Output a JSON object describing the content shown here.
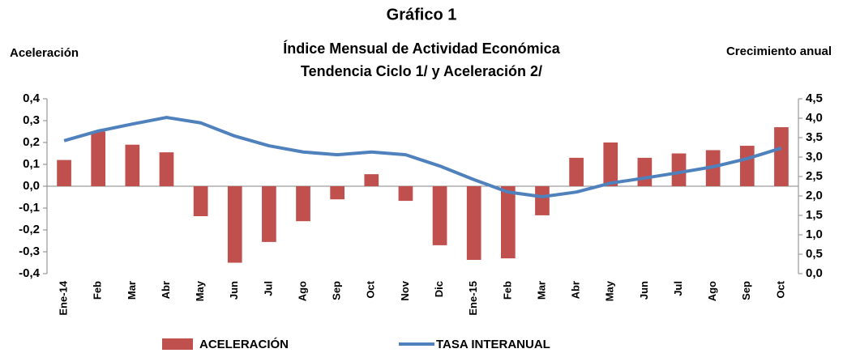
{
  "chart_data": {
    "type": "bar",
    "title": "Gráfico 1",
    "subtitle": [
      "Índice Mensual de Actividad Económica",
      "Tendencia Ciclo 1/ y Aceleración 2/"
    ],
    "y_label": "Aceleración",
    "y2_label": "Crecimiento anual",
    "categories": [
      "Ene-14",
      "Feb",
      "Mar",
      "Abr",
      "May",
      "Jun",
      "Jul",
      "Ago",
      "Sep",
      "Oct",
      "Nov",
      "Dic",
      "Ene-15",
      "Feb",
      "Mar",
      "Abr",
      "May",
      "Jun",
      "Jul",
      "Ago",
      "Sep",
      "Oct"
    ],
    "series": [
      {
        "name": "ACELERACIÓN",
        "type": "bar",
        "color": "#c0504d",
        "values": [
          0.12,
          0.25,
          0.19,
          0.155,
          -0.137,
          -0.35,
          -0.255,
          -0.16,
          -0.06,
          0.055,
          -0.067,
          -0.27,
          -0.337,
          -0.33,
          -0.133,
          0.13,
          0.2,
          0.13,
          0.15,
          0.165,
          0.185,
          0.27
        ]
      },
      {
        "name": "TASA INTERANUAL",
        "type": "line",
        "axis": "y2",
        "color": "#4f81bd",
        "values": [
          3.42,
          3.67,
          3.85,
          4.02,
          3.88,
          3.54,
          3.29,
          3.13,
          3.06,
          3.13,
          3.06,
          2.77,
          2.42,
          2.1,
          1.98,
          2.1,
          2.33,
          2.46,
          2.6,
          2.75,
          2.96,
          3.23
        ]
      }
    ],
    "ylim": [
      -0.4,
      0.4
    ],
    "yticks": [
      {
        "value": 0.4,
        "label": "0,4"
      },
      {
        "value": 0.3,
        "label": "0,3"
      },
      {
        "value": 0.2,
        "label": "0,2"
      },
      {
        "value": 0.1,
        "label": "0,1"
      },
      {
        "value": 0,
        "label": "0,0"
      },
      {
        "value": -0.1,
        "label": "-0,1"
      },
      {
        "value": -0.2,
        "label": "-0,2"
      },
      {
        "value": -0.3,
        "label": "-0,3"
      },
      {
        "value": -0.4,
        "label": "-0,4"
      }
    ],
    "y2lim": [
      0,
      4.5
    ],
    "y2ticks": [
      {
        "value": 4.5,
        "label": "4,5"
      },
      {
        "value": 4,
        "label": "4,0"
      },
      {
        "value": 3.5,
        "label": "3,5"
      },
      {
        "value": 3,
        "label": "3,0"
      },
      {
        "value": 2.5,
        "label": "2,5"
      },
      {
        "value": 2,
        "label": "2,0"
      },
      {
        "value": 1.5,
        "label": "1,5"
      },
      {
        "value": 1,
        "label": "1,0"
      },
      {
        "value": 0.5,
        "label": "0,5"
      },
      {
        "value": 0,
        "label": "0,0"
      }
    ],
    "grid": false,
    "legend": "bottom"
  }
}
